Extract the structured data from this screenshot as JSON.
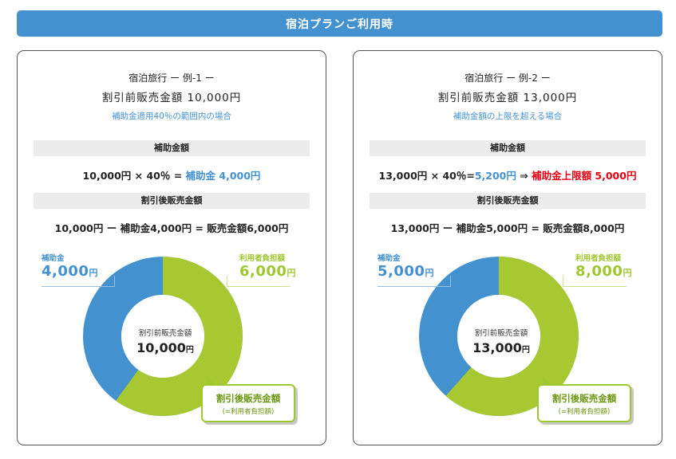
{
  "header": {
    "title": "宿泊プランご利用時"
  },
  "examples": [
    {
      "title": "宿泊旅行 ー 例-1 ー",
      "price_label": "割引前販売金額 10,000円",
      "note": "補助金適用40％の範囲内の場合",
      "band1": "補助金額",
      "calc1_plain": "10,000円 × 40％ = ",
      "calc1_highlight": "補助金 4,000円",
      "calc1_extra": "",
      "band2": "割引後販売金額",
      "calc2": "10,000円 ー 補助金4,000円 = 販売金額6,000円",
      "subsidy_label": "補助金",
      "subsidy_value": "4,000",
      "user_label": "利用者負担額",
      "user_value": "6,000",
      "yen": "円",
      "center_label": "割引前販売金額",
      "center_value": "10,000",
      "callout_line1": "割引後販売金額",
      "callout_line2": "(=利用者負担額)",
      "subsidy_fraction": 0.4
    },
    {
      "title": "宿泊旅行 ー 例-2 ー",
      "price_label": "割引前販売金額 13,000円",
      "note": "補助金額の上限を超える場合",
      "band1": "補助金額",
      "calc1_plain": "13,000円 × 40％=",
      "calc1_highlight": "5,200円",
      "calc1_arrow": " ⇒ ",
      "calc1_extra": "補助金上限額 5,000円",
      "band2": "割引後販売金額",
      "calc2": "13,000円 ー 補助金5,000円 = 販売金額8,000円",
      "subsidy_label": "補助金",
      "subsidy_value": "5,000",
      "user_label": "利用者負担額",
      "user_value": "8,000",
      "yen": "円",
      "center_label": "割引前販売金額",
      "center_value": "13,000",
      "callout_line1": "割引後販売金額",
      "callout_line2": "(=利用者負担額)",
      "subsidy_fraction": 0.3846
    }
  ],
  "colors": {
    "subsidy": "#4491cf",
    "user": "#a7c831",
    "header": "#4491cf",
    "cap": "#e60012"
  }
}
